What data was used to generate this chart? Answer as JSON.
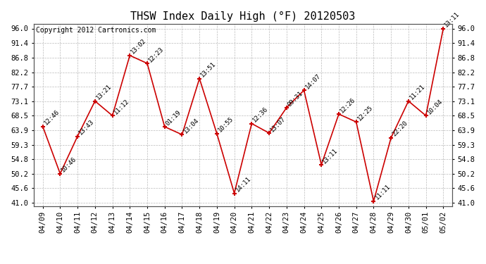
{
  "title": "THSW Index Daily High (°F) 20120503",
  "copyright": "Copyright 2012 Cartronics.com",
  "dates": [
    "04/09",
    "04/10",
    "04/11",
    "04/12",
    "04/13",
    "04/14",
    "04/15",
    "04/16",
    "04/17",
    "04/18",
    "04/19",
    "04/20",
    "04/21",
    "04/22",
    "04/23",
    "04/24",
    "04/25",
    "04/26",
    "04/27",
    "04/28",
    "04/29",
    "04/30",
    "05/01",
    "05/02"
  ],
  "values": [
    65.1,
    50.2,
    62.0,
    73.1,
    68.5,
    87.5,
    85.0,
    65.0,
    62.5,
    80.2,
    62.8,
    44.0,
    66.0,
    63.0,
    71.0,
    76.5,
    53.0,
    69.0,
    66.5,
    41.5,
    61.5,
    73.1,
    68.5,
    96.0
  ],
  "annotations": [
    "12:46",
    "10:46",
    "13:43",
    "13:21",
    "11:12",
    "13:02",
    "12:23",
    "01:19",
    "13:04",
    "13:51",
    "10:55",
    "14:11",
    "12:36",
    "13:07",
    "09:31",
    "14:07",
    "13:11",
    "12:26",
    "12:25",
    "11:11",
    "22:20",
    "11:21",
    "10:04",
    "13:11"
  ],
  "line_color": "#cc0000",
  "marker_color": "#cc0000",
  "bg_color": "#ffffff",
  "grid_color": "#bbbbbb",
  "ylim_min": 41.0,
  "ylim_max": 96.0,
  "yticks": [
    41.0,
    45.6,
    50.2,
    54.8,
    59.3,
    63.9,
    68.5,
    73.1,
    77.7,
    82.2,
    86.8,
    91.4,
    96.0
  ],
  "title_fontsize": 11,
  "annot_fontsize": 6.5,
  "copyright_fontsize": 7,
  "tick_fontsize": 7.5
}
